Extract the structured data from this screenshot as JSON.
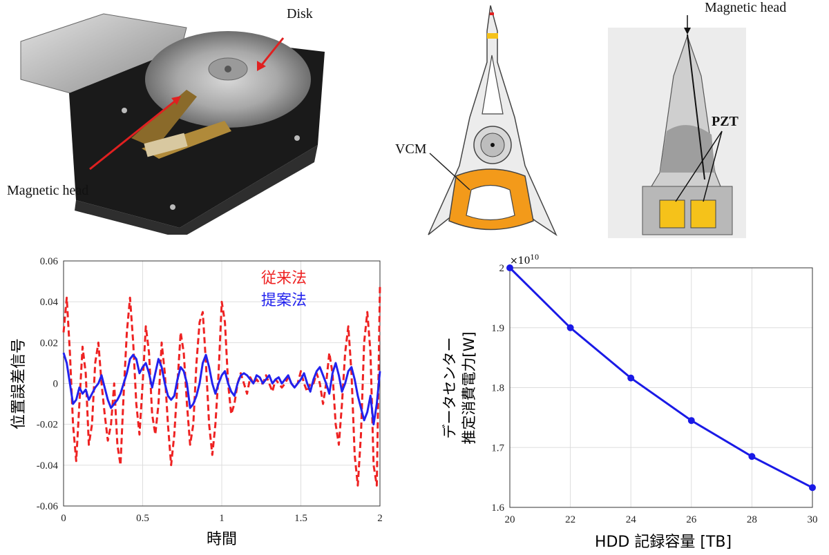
{
  "photos": {
    "hdd_photo": {
      "disk_label": "Disk",
      "head_label": "Magnetic head"
    },
    "actuator_diagram": {
      "vcm_label": "VCM"
    },
    "suspension_photo": {
      "head_label": "Magnetic head",
      "pzt_label": "PZT"
    }
  },
  "colors": {
    "conventional": "#ee2222",
    "proposed": "#2222ee",
    "capacity_line": "#1a1ae6",
    "vcm_coil": "#f39a1a",
    "pzt": "#f5c21a"
  },
  "chart_data": [
    {
      "type": "line",
      "xlabel": "時間",
      "ylabel": "位置誤差信号",
      "xlim": [
        0,
        2
      ],
      "ylim": [
        -0.06,
        0.06
      ],
      "xticks": [
        "0",
        "0.5",
        "1",
        "1.5",
        "2"
      ],
      "yticks": [
        "-0.06",
        "-0.04",
        "-0.02",
        "0",
        "0.02",
        "0.04",
        "0.06"
      ],
      "legend_position": "top-right",
      "grid": true,
      "series": [
        {
          "name": "従来法",
          "style": "dashed",
          "x": [
            0,
            0.02,
            0.04,
            0.06,
            0.08,
            0.1,
            0.12,
            0.14,
            0.16,
            0.18,
            0.2,
            0.22,
            0.24,
            0.26,
            0.28,
            0.3,
            0.32,
            0.34,
            0.36,
            0.38,
            0.4,
            0.42,
            0.44,
            0.46,
            0.48,
            0.5,
            0.52,
            0.54,
            0.56,
            0.58,
            0.6,
            0.62,
            0.64,
            0.66,
            0.68,
            0.7,
            0.72,
            0.74,
            0.76,
            0.78,
            0.8,
            0.82,
            0.84,
            0.86,
            0.88,
            0.9,
            0.92,
            0.94,
            0.96,
            0.98,
            1.0,
            1.02,
            1.04,
            1.06,
            1.08,
            1.1,
            1.12,
            1.14,
            1.16,
            1.18,
            1.2,
            1.22,
            1.24,
            1.26,
            1.28,
            1.3,
            1.32,
            1.34,
            1.36,
            1.38,
            1.4,
            1.42,
            1.44,
            1.46,
            1.48,
            1.5,
            1.52,
            1.54,
            1.56,
            1.58,
            1.6,
            1.62,
            1.64,
            1.66,
            1.68,
            1.7,
            1.72,
            1.74,
            1.76,
            1.78,
            1.8,
            1.82,
            1.84,
            1.86,
            1.88,
            1.9,
            1.92,
            1.94,
            1.96,
            1.98,
            2.0
          ],
          "values": [
            0.025,
            0.042,
            0.015,
            -0.02,
            -0.038,
            -0.01,
            0.018,
            0.005,
            -0.03,
            -0.02,
            0.01,
            0.02,
            0.0,
            -0.015,
            -0.028,
            -0.02,
            0.0,
            -0.03,
            -0.04,
            -0.005,
            0.025,
            0.042,
            0.02,
            -0.01,
            -0.025,
            0.0,
            0.028,
            0.015,
            -0.015,
            -0.025,
            -0.01,
            0.02,
            0.005,
            -0.02,
            -0.04,
            -0.025,
            0.0,
            0.025,
            0.015,
            -0.01,
            -0.03,
            -0.02,
            0.01,
            0.03,
            0.035,
            0.01,
            -0.02,
            -0.035,
            -0.02,
            0.005,
            0.04,
            0.03,
            0.0,
            -0.015,
            -0.01,
            0.0,
            0.005,
            0.0,
            -0.005,
            0.003,
            0.0,
            0.002,
            0.0,
            0.0,
            0.004,
            0.0,
            -0.004,
            0.002,
            0.0,
            -0.002,
            0.0,
            0.003,
            0.0,
            -0.002,
            0.0,
            0.006,
            0.0,
            -0.004,
            0.0,
            0.0,
            0.005,
            0.0,
            -0.01,
            0.0,
            0.015,
            0.005,
            -0.02,
            -0.03,
            -0.01,
            0.015,
            0.028,
            0.005,
            -0.035,
            -0.05,
            -0.025,
            0.02,
            0.035,
            0.015,
            -0.04,
            -0.05,
            0.048
          ]
        },
        {
          "name": "提案法",
          "style": "solid",
          "x": [
            0,
            0.02,
            0.04,
            0.06,
            0.08,
            0.1,
            0.12,
            0.14,
            0.16,
            0.18,
            0.2,
            0.22,
            0.24,
            0.26,
            0.28,
            0.3,
            0.32,
            0.34,
            0.36,
            0.38,
            0.4,
            0.42,
            0.44,
            0.46,
            0.48,
            0.5,
            0.52,
            0.54,
            0.56,
            0.58,
            0.6,
            0.62,
            0.64,
            0.66,
            0.68,
            0.7,
            0.72,
            0.74,
            0.76,
            0.78,
            0.8,
            0.82,
            0.84,
            0.86,
            0.88,
            0.9,
            0.92,
            0.94,
            0.96,
            0.98,
            1.0,
            1.02,
            1.04,
            1.06,
            1.08,
            1.1,
            1.12,
            1.14,
            1.16,
            1.18,
            1.2,
            1.22,
            1.24,
            1.26,
            1.28,
            1.3,
            1.32,
            1.34,
            1.36,
            1.38,
            1.4,
            1.42,
            1.44,
            1.46,
            1.48,
            1.5,
            1.52,
            1.54,
            1.56,
            1.58,
            1.6,
            1.62,
            1.64,
            1.66,
            1.68,
            1.7,
            1.72,
            1.74,
            1.76,
            1.78,
            1.8,
            1.82,
            1.84,
            1.86,
            1.88,
            1.9,
            1.92,
            1.94,
            1.96,
            1.98,
            2.0
          ],
          "values": [
            0.015,
            0.01,
            0.0,
            -0.01,
            -0.008,
            -0.002,
            -0.005,
            -0.003,
            -0.008,
            -0.005,
            -0.002,
            0.0,
            0.004,
            -0.002,
            -0.008,
            -0.012,
            -0.01,
            -0.008,
            -0.005,
            0.0,
            0.005,
            0.012,
            0.014,
            0.012,
            0.005,
            0.008,
            0.01,
            0.005,
            -0.002,
            0.005,
            0.012,
            0.008,
            0.0,
            -0.006,
            -0.008,
            -0.006,
            0.002,
            0.008,
            0.006,
            0.0,
            -0.012,
            -0.01,
            -0.006,
            0.0,
            0.01,
            0.014,
            0.008,
            0.0,
            -0.005,
            0.0,
            0.004,
            0.006,
            0.0,
            -0.004,
            -0.006,
            0.0,
            0.004,
            0.005,
            0.004,
            0.002,
            0.0,
            0.004,
            0.003,
            0.0,
            0.002,
            0.004,
            0.0,
            0.002,
            0.003,
            0.0,
            0.002,
            0.004,
            0.0,
            -0.002,
            0.0,
            0.002,
            0.005,
            0.0,
            -0.004,
            0.002,
            0.006,
            0.008,
            0.004,
            0.0,
            -0.005,
            0.005,
            0.01,
            0.004,
            -0.004,
            0.0,
            0.006,
            0.008,
            0.002,
            -0.006,
            -0.012,
            -0.018,
            -0.014,
            -0.006,
            -0.02,
            -0.01,
            0.006
          ]
        }
      ]
    },
    {
      "type": "line",
      "xlabel": "HDD 記録容量 [TB]",
      "ylabel": "データセンター推定消費電力[W]",
      "multiplier": "×10",
      "multiplier_exp": "10",
      "xlim": [
        20,
        30
      ],
      "ylim": [
        1.6,
        2.0
      ],
      "xticks": [
        "20",
        "22",
        "24",
        "26",
        "28",
        "30"
      ],
      "yticks": [
        "1.6",
        "1.7",
        "1.8",
        "1.9",
        "2"
      ],
      "grid": true,
      "markers": true,
      "x": [
        20,
        22,
        24,
        26,
        28,
        30
      ],
      "values": [
        2.0,
        1.9,
        1.816,
        1.745,
        1.685,
        1.633
      ]
    }
  ]
}
